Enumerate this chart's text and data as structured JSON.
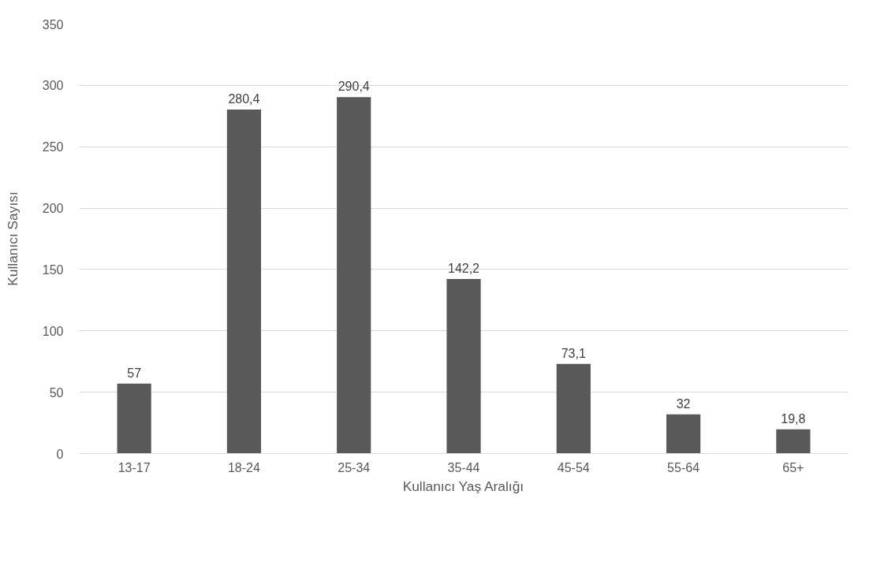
{
  "chart_data": {
    "type": "bar",
    "xlabel": "Kullanıcı Yaş Aralığı",
    "ylabel": "Kullanıcı Sayısı",
    "categories": [
      "13-17",
      "18-24",
      "25-34",
      "35-44",
      "45-54",
      "55-64",
      "65+"
    ],
    "values": [
      57,
      280.4,
      290.4,
      142.2,
      73.1,
      32,
      19.8
    ],
    "value_labels": [
      "57",
      "280,4",
      "290,4",
      "142,2",
      "73,1",
      "32",
      "19,8"
    ],
    "color": "#595959",
    "ylim": [
      0,
      350
    ],
    "yticks": [
      0,
      50,
      100,
      150,
      200,
      250,
      300,
      350
    ],
    "grid": "y"
  }
}
